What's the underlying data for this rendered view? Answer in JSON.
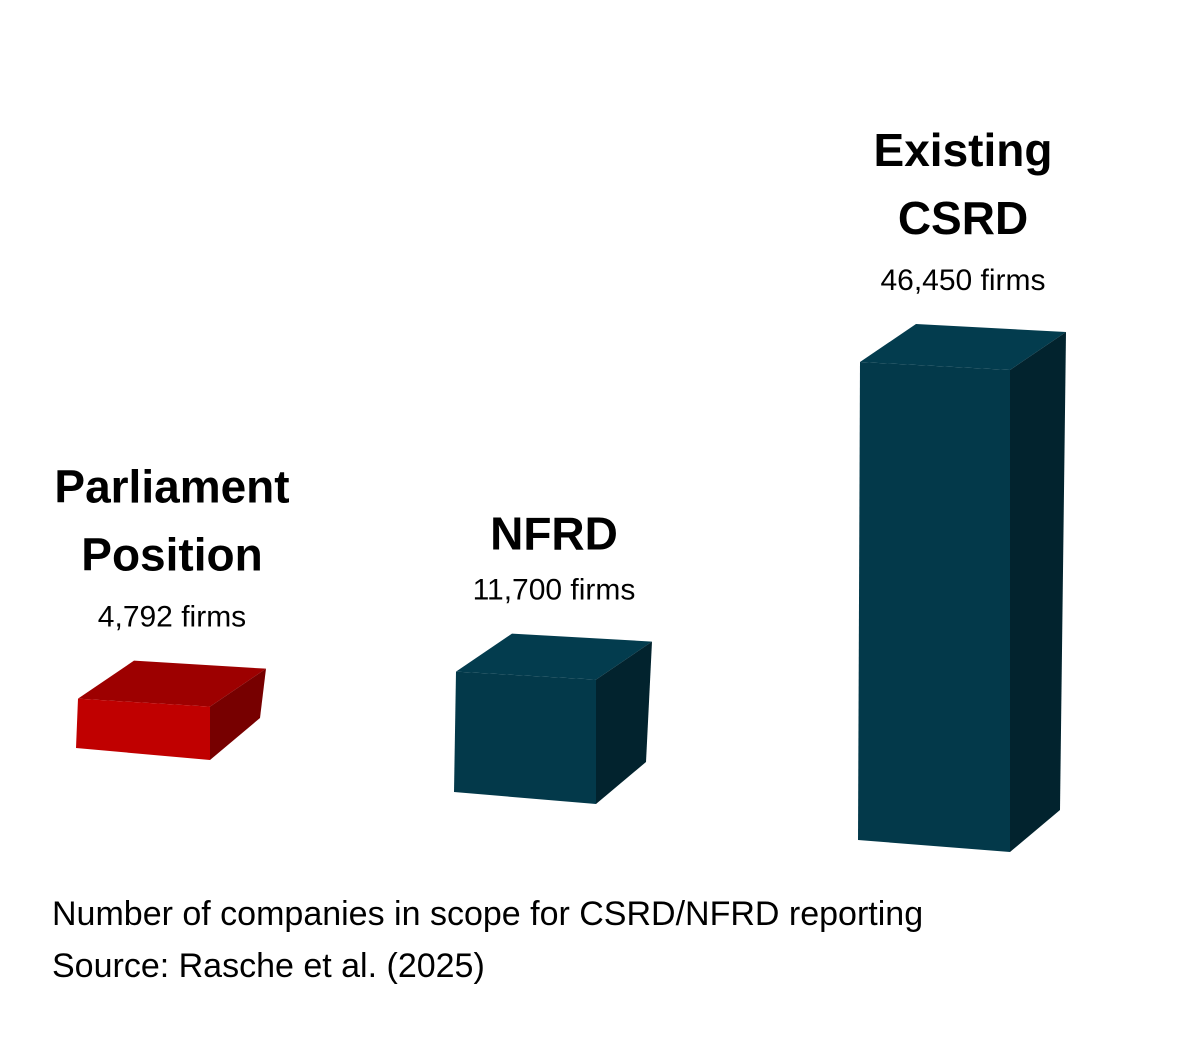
{
  "chart_data": {
    "type": "bar",
    "categories": [
      {
        "line1": "Parliament",
        "line2": "Position"
      },
      {
        "line1": "NFRD",
        "line2": ""
      },
      {
        "line1": "Existing",
        "line2": "CSRD"
      }
    ],
    "value_labels": [
      "4,792 firms",
      "11,700 firms",
      "46,450 firms"
    ],
    "values": [
      4792,
      11700,
      46450
    ],
    "colors": [
      "#c00000",
      "#03394a",
      "#03394a"
    ],
    "title": "",
    "xlabel": "",
    "ylabel": "",
    "ylim": [
      0,
      50000
    ],
    "grid": false,
    "legend": "none"
  },
  "caption": {
    "line1": "Number of companies in scope for CSRD/NFRD reporting",
    "line2": "Source: Rasche et al. (2025)"
  }
}
